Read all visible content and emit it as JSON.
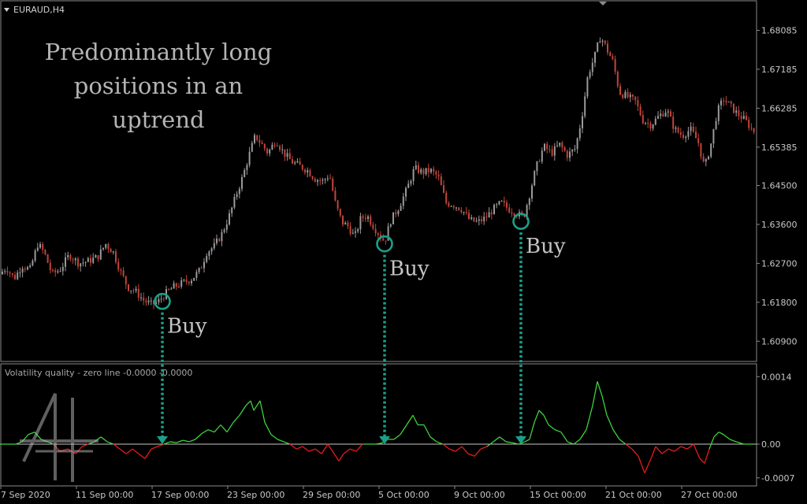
{
  "window": {
    "symbol": "EURAUD,H4"
  },
  "annotation": {
    "lines": [
      "Predominantly long",
      "positions in an",
      "uptrend"
    ]
  },
  "buy_label": "Buy",
  "indicator": {
    "title": "Volatility quality - zero line -0.0000 -0.0000"
  },
  "colors": {
    "bull": "#9a9a9a",
    "bear": "#c0453a",
    "marker": "#1aa08a",
    "up_line": "#3ed23e",
    "down_line": "#e81b1b",
    "zero": "#c8c8c8"
  },
  "chart_data": [
    {
      "type": "candlestick",
      "title": "EURAUD,H4",
      "ylim": [
        1.6045,
        1.6875
      ],
      "y_ticks": [
        "1.68085",
        "1.67185",
        "1.66285",
        "1.65385",
        "1.64500",
        "1.63600",
        "1.62700",
        "1.61800",
        "1.60900"
      ],
      "y_tick_values": [
        1.68085,
        1.67185,
        1.66285,
        1.65385,
        1.645,
        1.636,
        1.627,
        1.618,
        1.609
      ],
      "x_labels": [
        "7 Sep 2020",
        "11 Sep 00:00",
        "17 Sep 00:00",
        "23 Sep 00:00",
        "29 Sep 00:00",
        "5 Oct 00:00",
        "9 Oct 00:00",
        "15 Oct 00:00",
        "21 Oct 00:00",
        "27 Oct 00:00"
      ],
      "close_path": [
        [
          0,
          1.6245
        ],
        [
          8,
          1.626
        ],
        [
          18,
          1.6235
        ],
        [
          28,
          1.6265
        ],
        [
          38,
          1.6255
        ],
        [
          48,
          1.6315
        ],
        [
          56,
          1.6295
        ],
        [
          66,
          1.6245
        ],
        [
          76,
          1.6255
        ],
        [
          88,
          1.629
        ],
        [
          100,
          1.627
        ],
        [
          112,
          1.6275
        ],
        [
          124,
          1.6285
        ],
        [
          134,
          1.6315
        ],
        [
          144,
          1.6295
        ],
        [
          152,
          1.6255
        ],
        [
          162,
          1.6215
        ],
        [
          172,
          1.6205
        ],
        [
          182,
          1.6185
        ],
        [
          192,
          1.6175
        ],
        [
          200,
          1.618
        ],
        [
          210,
          1.62
        ],
        [
          220,
          1.6215
        ],
        [
          232,
          1.6225
        ],
        [
          244,
          1.6235
        ],
        [
          254,
          1.6255
        ],
        [
          262,
          1.6295
        ],
        [
          272,
          1.631
        ],
        [
          282,
          1.634
        ],
        [
          292,
          1.6385
        ],
        [
          300,
          1.643
        ],
        [
          308,
          1.647
        ],
        [
          316,
          1.652
        ],
        [
          324,
          1.6565
        ],
        [
          332,
          1.6545
        ],
        [
          340,
          1.6525
        ],
        [
          350,
          1.6555
        ],
        [
          360,
          1.6525
        ],
        [
          370,
          1.6505
        ],
        [
          380,
          1.6495
        ],
        [
          390,
          1.6485
        ],
        [
          400,
          1.6465
        ],
        [
          410,
          1.646
        ],
        [
          418,
          1.6475
        ],
        [
          426,
          1.6405
        ],
        [
          434,
          1.6365
        ],
        [
          442,
          1.6355
        ],
        [
          450,
          1.633
        ],
        [
          458,
          1.6375
        ],
        [
          466,
          1.638
        ],
        [
          474,
          1.6355
        ],
        [
          482,
          1.6335
        ],
        [
          488,
          1.632
        ],
        [
          496,
          1.637
        ],
        [
          506,
          1.64
        ],
        [
          516,
          1.644
        ],
        [
          526,
          1.649
        ],
        [
          536,
          1.648
        ],
        [
          546,
          1.6485
        ],
        [
          556,
          1.647
        ],
        [
          566,
          1.641
        ],
        [
          576,
          1.6405
        ],
        [
          586,
          1.6395
        ],
        [
          596,
          1.637
        ],
        [
          606,
          1.6365
        ],
        [
          616,
          1.6375
        ],
        [
          626,
          1.6395
        ],
        [
          636,
          1.641
        ],
        [
          646,
          1.6395
        ],
        [
          656,
          1.6385
        ],
        [
          664,
          1.6375
        ],
        [
          672,
          1.643
        ],
        [
          680,
          1.649
        ],
        [
          690,
          1.654
        ],
        [
          700,
          1.6525
        ],
        [
          710,
          1.6545
        ],
        [
          720,
          1.652
        ],
        [
          730,
          1.6535
        ],
        [
          738,
          1.6605
        ],
        [
          746,
          1.6705
        ],
        [
          754,
          1.6745
        ],
        [
          762,
          1.6795
        ],
        [
          770,
          1.6765
        ],
        [
          778,
          1.6735
        ],
        [
          786,
          1.6665
        ],
        [
          796,
          1.6655
        ],
        [
          806,
          1.6645
        ],
        [
          816,
          1.66
        ],
        [
          826,
          1.659
        ],
        [
          836,
          1.661
        ],
        [
          846,
          1.6625
        ],
        [
          856,
          1.658
        ],
        [
          866,
          1.6565
        ],
        [
          876,
          1.658
        ],
        [
          886,
          1.655
        ],
        [
          894,
          1.649
        ],
        [
          902,
          1.6545
        ],
        [
          910,
          1.662
        ],
        [
          918,
          1.665
        ],
        [
          926,
          1.6635
        ],
        [
          936,
          1.6615
        ],
        [
          946,
          1.66
        ],
        [
          954,
          1.658
        ],
        [
          960,
          1.657
        ]
      ],
      "buy_signals": [
        1.6182,
        1.6315,
        1.6367
      ]
    },
    {
      "type": "line",
      "title": "Volatility quality - zero line -0.0000 -0.0000",
      "ylim": [
        -0.00085,
        0.00165
      ],
      "y_ticks": [
        "0.0014",
        "0.00",
        "-0.0007"
      ],
      "y_tick_values": [
        0.0014,
        0.0,
        -0.0007
      ],
      "series": [
        {
          "values": [
            [
              0,
              0
            ],
            [
              20,
              0
            ],
            [
              28,
              5e-05
            ],
            [
              36,
              0.0002
            ],
            [
              44,
              0.00025
            ],
            [
              52,
              0.0001
            ],
            [
              60,
              5e-05
            ],
            [
              68,
              0
            ],
            [
              76,
              -0.00015
            ],
            [
              86,
              -0.0001
            ],
            [
              96,
              -0.0002
            ],
            [
              104,
              -5e-05
            ],
            [
              112,
              0
            ],
            [
              120,
              5e-05
            ],
            [
              128,
              0.00015
            ],
            [
              136,
              5e-05
            ],
            [
              144,
              0
            ],
            [
              152,
              -0.0001
            ],
            [
              160,
              -0.0002
            ],
            [
              168,
              -0.0001
            ],
            [
              176,
              -0.0002
            ],
            [
              184,
              -0.0003
            ],
            [
              192,
              -0.0001
            ],
            [
              200,
              -5e-05
            ],
            [
              208,
              0
            ],
            [
              216,
              5e-05
            ],
            [
              224,
              3e-05
            ],
            [
              232,
              8e-05
            ],
            [
              240,
              5e-05
            ],
            [
              248,
              0.0001
            ],
            [
              256,
              0.00022
            ],
            [
              264,
              0.0003
            ],
            [
              272,
              0.00025
            ],
            [
              280,
              0.0004
            ],
            [
              288,
              0.00025
            ],
            [
              296,
              0.00045
            ],
            [
              304,
              0.0006
            ],
            [
              312,
              0.0008
            ],
            [
              318,
              0.0009
            ],
            [
              322,
              0.0007
            ],
            [
              330,
              0.0009
            ],
            [
              336,
              0.00045
            ],
            [
              344,
              0.0002
            ],
            [
              352,
              0.0001
            ],
            [
              360,
              5e-05
            ],
            [
              368,
              0
            ],
            [
              376,
              -0.0001
            ],
            [
              384,
              -5e-05
            ],
            [
              392,
              -0.00015
            ],
            [
              400,
              -0.0001
            ],
            [
              408,
              -0.0002
            ],
            [
              416,
              0
            ],
            [
              424,
              -0.0002
            ],
            [
              430,
              -0.00035
            ],
            [
              436,
              -0.0002
            ],
            [
              444,
              -0.0001
            ],
            [
              452,
              -0.00015
            ],
            [
              460,
              0
            ],
            [
              468,
              0
            ],
            [
              476,
              0
            ],
            [
              484,
              2e-05
            ],
            [
              492,
              0.0001
            ],
            [
              500,
              0.0001
            ],
            [
              508,
              0.0002
            ],
            [
              516,
              0.0004
            ],
            [
              524,
              0.0006
            ],
            [
              530,
              0.0004
            ],
            [
              538,
              0.0004
            ],
            [
              546,
              0.00015
            ],
            [
              554,
              5e-05
            ],
            [
              562,
              0
            ],
            [
              570,
              -0.0001
            ],
            [
              578,
              -0.00015
            ],
            [
              586,
              -5e-05
            ],
            [
              594,
              -0.0002
            ],
            [
              602,
              -0.00025
            ],
            [
              610,
              -0.0001
            ],
            [
              618,
              -5e-05
            ],
            [
              626,
              5e-05
            ],
            [
              634,
              0.00015
            ],
            [
              642,
              5e-05
            ],
            [
              650,
              3e-05
            ],
            [
              658,
              0
            ],
            [
              666,
              5e-05
            ],
            [
              672,
              0.0001
            ],
            [
              678,
              0.00045
            ],
            [
              684,
              0.0007
            ],
            [
              690,
              0.0006
            ],
            [
              696,
              0.0004
            ],
            [
              704,
              0.0003
            ],
            [
              712,
              0.00025
            ],
            [
              720,
              5e-05
            ],
            [
              728,
              0
            ],
            [
              736,
              0.0001
            ],
            [
              744,
              0.0003
            ],
            [
              752,
              0.0008
            ],
            [
              758,
              0.0013
            ],
            [
              764,
              0.001
            ],
            [
              770,
              0.0006
            ],
            [
              778,
              0.0003
            ],
            [
              786,
              0.0001
            ],
            [
              794,
              0
            ],
            [
              802,
              -0.0001
            ],
            [
              810,
              -0.00025
            ],
            [
              818,
              -0.0006
            ],
            [
              826,
              -0.0003
            ],
            [
              832,
              -5e-05
            ],
            [
              840,
              -0.0002
            ],
            [
              848,
              -0.0001
            ],
            [
              856,
              -0.00015
            ],
            [
              864,
              -5e-05
            ],
            [
              872,
              -0.0001
            ],
            [
              880,
              0
            ],
            [
              888,
              -0.0003
            ],
            [
              894,
              -0.0004
            ],
            [
              900,
              -0.0001
            ],
            [
              906,
              0.00015
            ],
            [
              912,
              0.00025
            ],
            [
              918,
              0.0002
            ],
            [
              926,
              0.0001
            ],
            [
              934,
              5e-05
            ],
            [
              944,
              0
            ],
            [
              956,
              0
            ]
          ]
        }
      ]
    }
  ]
}
